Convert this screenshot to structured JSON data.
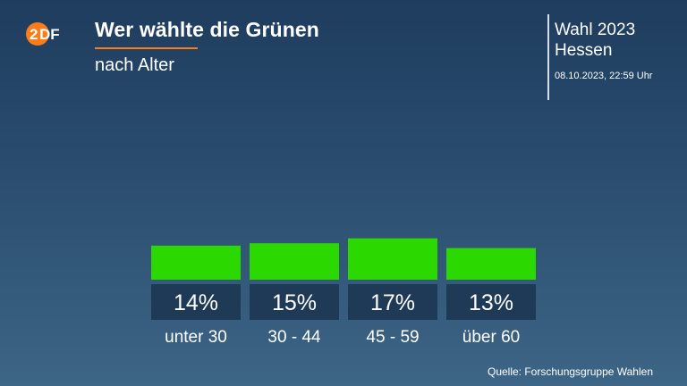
{
  "header": {
    "title": "Wer wählte die Grünen",
    "subtitle": "nach Alter",
    "election_title": "Wahl 2023",
    "election_region": "Hessen",
    "timestamp": "08.10.2023, 22:59 Uhr"
  },
  "logo": {
    "icon": "zdf-logo-icon",
    "color": "#fa7d19"
  },
  "colors": {
    "bar": "#2bd800",
    "label_box": "#1e3a56",
    "accent": "#fa7d19"
  },
  "chart_data": {
    "type": "bar",
    "title": "Wer wählte die Grünen",
    "subtitle": "nach Alter",
    "categories": [
      "unter 30",
      "30 - 44",
      "45 - 59",
      "über 60"
    ],
    "values": [
      14,
      15,
      17,
      13
    ],
    "value_labels": [
      "14%",
      "15%",
      "17%",
      "13%"
    ],
    "unit": "%",
    "grid": false,
    "legend": "none"
  },
  "footer": {
    "source": "Quelle: Forschungsgruppe Wahlen"
  }
}
